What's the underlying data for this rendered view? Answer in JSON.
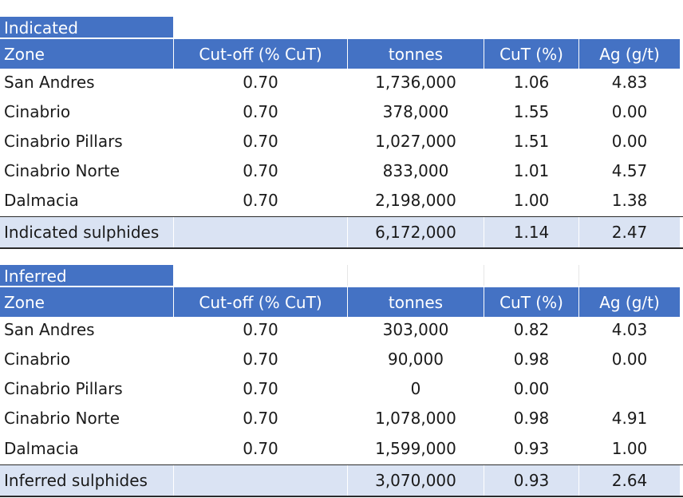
{
  "columns": [
    "Zone",
    "Cut-off (% CuT)",
    "tonnes",
    "CuT (%)",
    "Ag (g/t)"
  ],
  "indicated": {
    "section_label": "Indicated",
    "rows": [
      [
        "San Andres",
        "0.70",
        "1,736,000",
        "1.06",
        "4.83"
      ],
      [
        "Cinabrio",
        "0.70",
        "378,000",
        "1.55",
        "0.00"
      ],
      [
        "Cinabrio Pillars",
        "0.70",
        "1,027,000",
        "1.51",
        "0.00"
      ],
      [
        "Cinabrio Norte",
        "0.70",
        "833,000",
        "1.01",
        "4.57"
      ],
      [
        "Dalmacia",
        "0.70",
        "2,198,000",
        "1.00",
        "1.38"
      ]
    ],
    "total": [
      "Indicated sulphides",
      "",
      "6,172,000",
      "1.14",
      "2.47"
    ]
  },
  "inferred": {
    "section_label": "Inferred",
    "rows": [
      [
        "San Andres",
        "0.70",
        "303,000",
        "0.82",
        "4.03"
      ],
      [
        "Cinabrio",
        "0.70",
        "90,000",
        "0.98",
        "0.00"
      ],
      [
        "Cinabrio Pillars",
        "0.70",
        "0",
        "0.00",
        ""
      ],
      [
        "Cinabrio Norte",
        "0.70",
        "1,078,000",
        "0.98",
        "4.91"
      ],
      [
        "Dalmacia",
        "0.70",
        "1,599,000",
        "0.93",
        "1.00"
      ]
    ],
    "total": [
      "Inferred sulphides",
      "",
      "3,070,000",
      "0.93",
      "2.64"
    ]
  },
  "colors": {
    "header_fill": "#4472c4",
    "total_fill": "#dae3f3"
  }
}
